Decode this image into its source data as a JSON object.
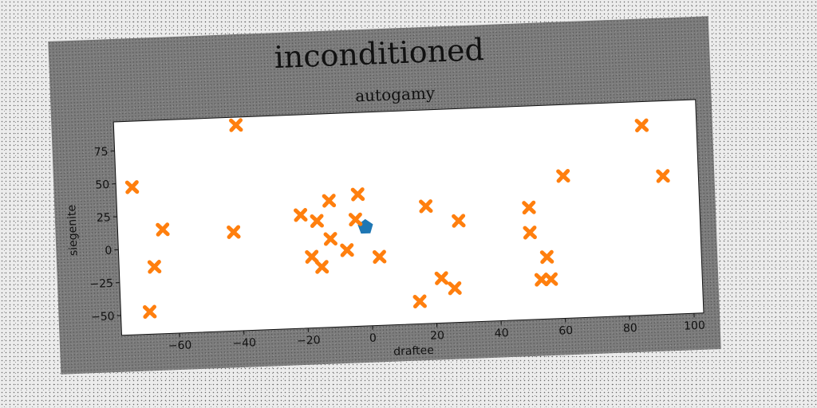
{
  "chart_data": {
    "type": "scatter",
    "suptitle": "inconditioned",
    "title": "autogamy",
    "xlabel": "draftee",
    "ylabel": "siegenite",
    "xlim": [
      -78,
      103
    ],
    "ylim": [
      -65,
      97
    ],
    "xticks": [
      -60,
      -40,
      -20,
      0,
      20,
      40,
      60,
      80,
      100
    ],
    "yticks": [
      -50,
      -25,
      0,
      25,
      50,
      75
    ],
    "grid": false,
    "series": [
      {
        "marker": "pentagon",
        "color": "#1f77b4",
        "points": [
          {
            "x": -1,
            "y": 10
          }
        ]
      },
      {
        "marker": "x",
        "color": "#ff7f0e",
        "points": [
          {
            "x": -40,
            "y": 91
          },
          {
            "x": -73,
            "y": 47
          },
          {
            "x": -64,
            "y": 14
          },
          {
            "x": -67,
            "y": -14
          },
          {
            "x": -69,
            "y": -48
          },
          {
            "x": -42,
            "y": 10
          },
          {
            "x": -21,
            "y": 21
          },
          {
            "x": -16,
            "y": 16
          },
          {
            "x": -12,
            "y": 31
          },
          {
            "x": -3,
            "y": 35
          },
          {
            "x": -4,
            "y": 16
          },
          {
            "x": -12,
            "y": 2
          },
          {
            "x": -7,
            "y": -7
          },
          {
            "x": -18,
            "y": -11
          },
          {
            "x": -15,
            "y": -19
          },
          {
            "x": 3,
            "y": -13
          },
          {
            "x": 18,
            "y": 24
          },
          {
            "x": 28,
            "y": 12
          },
          {
            "x": 15,
            "y": -48
          },
          {
            "x": 22,
            "y": -31
          },
          {
            "x": 26,
            "y": -39
          },
          {
            "x": 50,
            "y": 20
          },
          {
            "x": 50,
            "y": 1
          },
          {
            "x": 61,
            "y": 43
          },
          {
            "x": 55,
            "y": -18
          },
          {
            "x": 53,
            "y": -35
          },
          {
            "x": 56,
            "y": -35
          },
          {
            "x": 86,
            "y": 79
          },
          {
            "x": 92,
            "y": 40
          }
        ]
      }
    ]
  }
}
